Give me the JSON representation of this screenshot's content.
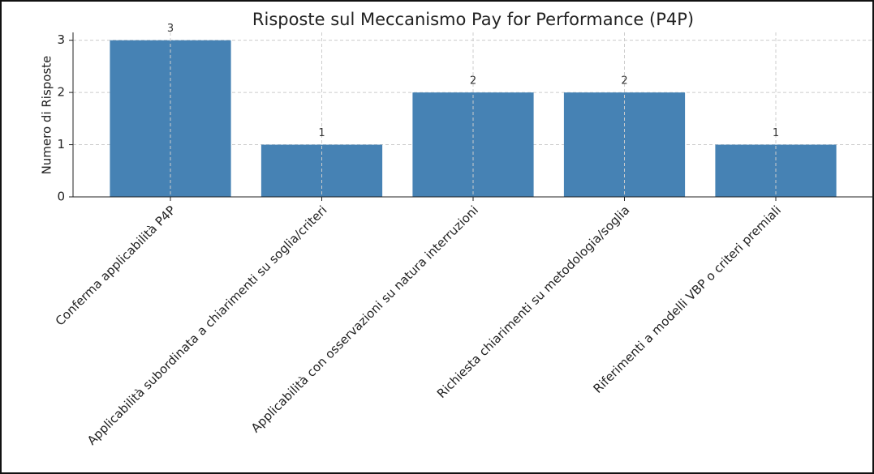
{
  "chart_data": {
    "type": "bar",
    "title": "Risposte sul Meccanismo Pay for Performance (P4P)",
    "y_label": "Numero di Risposte",
    "categories": [
      "Conferma applicabilità P4P",
      "Applicabilità subordinata a chiarimenti su soglia/criteri",
      "Applicabilità con osservazioni su natura interruzioni",
      "Richiesta chiarimenti su metodologia/soglia",
      "Riferimenti a modelli VBP o criteri premiali"
    ],
    "values": [
      3,
      1,
      2,
      2,
      1
    ],
    "color": "#4682b4",
    "ylim": [
      0,
      3.15
    ],
    "yticks": [
      0,
      1,
      2,
      3
    ],
    "grid": true
  }
}
